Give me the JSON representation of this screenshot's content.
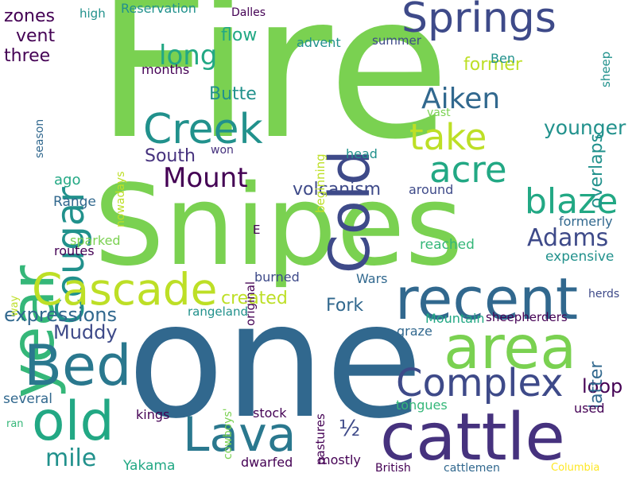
{
  "words": [
    {
      "text": "Fire",
      "color": "#7ad151",
      "vertical": false
    },
    {
      "text": "Snipes",
      "color": "#7ad151",
      "vertical": false
    },
    {
      "text": "one",
      "color": "#31688e",
      "vertical": false
    },
    {
      "text": "cattle",
      "color": "#46327e",
      "vertical": false
    },
    {
      "text": "area",
      "color": "#7ad151",
      "vertical": false
    },
    {
      "text": "recent",
      "color": "#31688e",
      "vertical": false
    },
    {
      "text": "Cold",
      "color": "#3e4a89",
      "vertical": true
    },
    {
      "text": "year",
      "color": "#35b779",
      "vertical": true
    },
    {
      "text": "Springs",
      "color": "#3e4a89",
      "vertical": false
    },
    {
      "text": "Creek",
      "color": "#21918c",
      "vertical": false
    },
    {
      "text": "Cougar",
      "color": "#21918c",
      "vertical": true
    },
    {
      "text": "Bed",
      "color": "#2a788e",
      "vertical": false
    },
    {
      "text": "old",
      "color": "#22a884",
      "vertical": false
    },
    {
      "text": "Lava",
      "color": "#2a788e",
      "vertical": false
    },
    {
      "text": "Cascade",
      "color": "#bddf26",
      "vertical": false
    },
    {
      "text": "Complex",
      "color": "#3e4a89",
      "vertical": false
    },
    {
      "text": "take",
      "color": "#bddf26",
      "vertical": false
    },
    {
      "text": "acre",
      "color": "#22a884",
      "vertical": false
    },
    {
      "text": "blaze",
      "color": "#22a884",
      "vertical": false
    },
    {
      "text": "Mount",
      "color": "#440154",
      "vertical": false
    },
    {
      "text": "Aiken",
      "color": "#31688e",
      "vertical": false
    },
    {
      "text": "Adams",
      "color": "#3e4a89",
      "vertical": false
    },
    {
      "text": "long",
      "color": "#22a884",
      "vertical": false
    },
    {
      "text": "younger",
      "color": "#21918c",
      "vertical": false
    },
    {
      "text": "overlaps",
      "color": "#21918c",
      "vertical": true
    },
    {
      "text": "volcanism",
      "color": "#3e4a89",
      "vertical": false
    },
    {
      "text": "expressions",
      "color": "#31688e",
      "vertical": false
    },
    {
      "text": "mile",
      "color": "#21918c",
      "vertical": false
    },
    {
      "text": "Muddy",
      "color": "#3e4a89",
      "vertical": false
    },
    {
      "text": "½",
      "color": "#3e4a89",
      "vertical": false
    },
    {
      "text": "loop",
      "color": "#440154",
      "vertical": false
    },
    {
      "text": "latter",
      "color": "#31688e",
      "vertical": true
    },
    {
      "text": "Butte",
      "color": "#21918c",
      "vertical": false
    },
    {
      "text": "South",
      "color": "#46327e",
      "vertical": false
    },
    {
      "text": "flow",
      "color": "#22a884",
      "vertical": false
    },
    {
      "text": "former",
      "color": "#bddf26",
      "vertical": false
    },
    {
      "text": "Fork",
      "color": "#31688e",
      "vertical": false
    },
    {
      "text": "created",
      "color": "#bddf26",
      "vertical": false
    },
    {
      "text": "three",
      "color": "#440154",
      "vertical": false
    },
    {
      "text": "vent",
      "color": "#440154",
      "vertical": false
    },
    {
      "text": "zones",
      "color": "#440154",
      "vertical": false
    },
    {
      "text": "ago",
      "color": "#22a884",
      "vertical": false
    },
    {
      "text": "Range",
      "color": "#31688e",
      "vertical": false
    },
    {
      "text": "routes",
      "color": "#440154",
      "vertical": false
    },
    {
      "text": "sparked",
      "color": "#7ad151",
      "vertical": false
    },
    {
      "text": "burned",
      "color": "#3e4a89",
      "vertical": false
    },
    {
      "text": "original",
      "color": "#440154",
      "vertical": true
    },
    {
      "text": "Wars",
      "color": "#31688e",
      "vertical": false
    },
    {
      "text": "reached",
      "color": "#35b779",
      "vertical": false
    },
    {
      "text": "expensive",
      "color": "#21918c",
      "vertical": false
    },
    {
      "text": "formerly",
      "color": "#31688e",
      "vertical": false
    },
    {
      "text": "around",
      "color": "#3e4a89",
      "vertical": false
    },
    {
      "text": "head",
      "color": "#21918c",
      "vertical": false
    },
    {
      "text": "beginning",
      "color": "#bddf26",
      "vertical": true
    },
    {
      "text": "vast",
      "color": "#7ad151",
      "vertical": false
    },
    {
      "text": "summer",
      "color": "#3e4a89",
      "vertical": false
    },
    {
      "text": "advent",
      "color": "#21918c",
      "vertical": false
    },
    {
      "text": "Ben",
      "color": "#21918c",
      "vertical": false
    },
    {
      "text": "sheep",
      "color": "#21918c",
      "vertical": true
    },
    {
      "text": "high",
      "color": "#21918c",
      "vertical": false
    },
    {
      "text": "Reservation",
      "color": "#21918c",
      "vertical": false
    },
    {
      "text": "Dalles",
      "color": "#440154",
      "vertical": false
    },
    {
      "text": "months",
      "color": "#440154",
      "vertical": false
    },
    {
      "text": "season",
      "color": "#31688e",
      "vertical": true
    },
    {
      "text": "nowadays",
      "color": "#bddf26",
      "vertical": true
    },
    {
      "text": "won",
      "color": "#46327e",
      "vertical": false
    },
    {
      "text": "E",
      "color": "#440154",
      "vertical": false
    },
    {
      "text": "way",
      "color": "#bddf26",
      "vertical": true
    },
    {
      "text": "herds",
      "color": "#3e4a89",
      "vertical": false
    },
    {
      "text": "rangeland",
      "color": "#21918c",
      "vertical": false
    },
    {
      "text": "Mountain",
      "color": "#22a884",
      "vertical": false
    },
    {
      "text": "sheepherders",
      "color": "#440154",
      "vertical": false
    },
    {
      "text": "graze",
      "color": "#31688e",
      "vertical": false
    },
    {
      "text": "cowboys'",
      "color": "#7ad151",
      "vertical": true
    },
    {
      "text": "pastures",
      "color": "#440154",
      "vertical": true
    },
    {
      "text": "several",
      "color": "#31688e",
      "vertical": false
    },
    {
      "text": "kings",
      "color": "#440154",
      "vertical": false
    },
    {
      "text": "stock",
      "color": "#440154",
      "vertical": false
    },
    {
      "text": "tongues",
      "color": "#35b779",
      "vertical": false
    },
    {
      "text": "used",
      "color": "#440154",
      "vertical": false
    },
    {
      "text": "ran",
      "color": "#35b779",
      "vertical": false
    },
    {
      "text": "Yakama",
      "color": "#22a884",
      "vertical": false
    },
    {
      "text": "dwarfed",
      "color": "#440154",
      "vertical": false
    },
    {
      "text": "mostly",
      "color": "#440154",
      "vertical": false
    },
    {
      "text": "British",
      "color": "#440154",
      "vertical": false
    },
    {
      "text": "cattlemen",
      "color": "#31688e",
      "vertical": false
    },
    {
      "text": "Columbia",
      "color": "#fde725",
      "vertical": false
    }
  ]
}
